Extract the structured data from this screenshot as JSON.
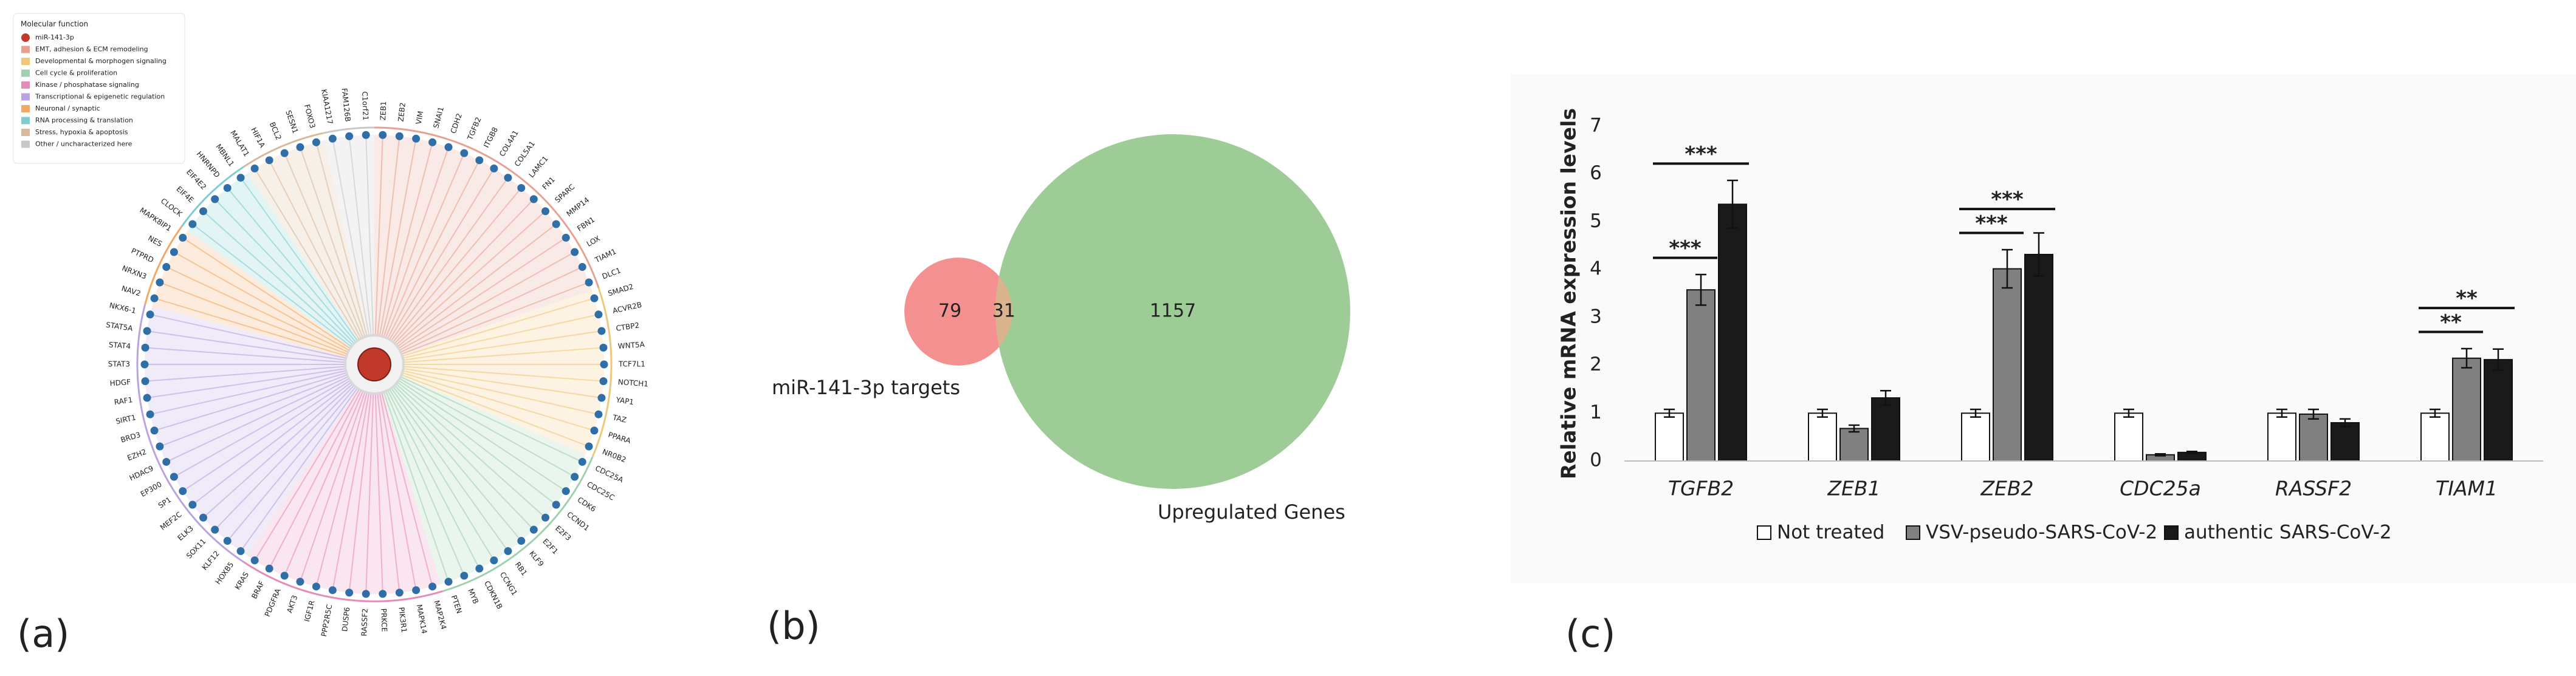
{
  "panels": [
    "(a)",
    "(b)",
    "(c)"
  ],
  "chart_data": [
    {
      "type": "network",
      "legend_title": "Molecular function",
      "center": {
        "name": "miR-141-3p",
        "color": "#c0392b"
      },
      "groups": [
        {
          "name": "EMT, adhesion & ECM remodeling",
          "color": "#e8a090"
        },
        {
          "name": "Developmental & morphogen signaling",
          "color": "#f0c87a"
        },
        {
          "name": "Cell cycle & proliferation",
          "color": "#9fd0b0"
        },
        {
          "name": "Kinase / phosphatase signaling",
          "color": "#e88bb8"
        },
        {
          "name": "Transcriptional & epigenetic regulation",
          "color": "#b9a3e0"
        },
        {
          "name": "Neuronal / synaptic",
          "color": "#f5a862"
        },
        {
          "name": "RNA processing & translation",
          "color": "#7ecbd0"
        },
        {
          "name": "Stress, hypoxia & apoptosis",
          "color": "#d9b99b"
        },
        {
          "name": "Other / uncharacterized here",
          "color": "#c8c8c8"
        }
      ],
      "nodes": [
        {
          "label": "ZEB1",
          "group": 0
        },
        {
          "label": "ZEB2",
          "group": 0
        },
        {
          "label": "VIM",
          "group": 0
        },
        {
          "label": "SNAI1",
          "group": 0
        },
        {
          "label": "CDH2",
          "group": 0
        },
        {
          "label": "TGFB2",
          "group": 0
        },
        {
          "label": "ITGB8",
          "group": 0
        },
        {
          "label": "COL4A1",
          "group": 0
        },
        {
          "label": "COL5A1",
          "group": 0
        },
        {
          "label": "LAMC1",
          "group": 0
        },
        {
          "label": "FN1",
          "group": 0
        },
        {
          "label": "SPARC",
          "group": 0
        },
        {
          "label": "MMP14",
          "group": 0
        },
        {
          "label": "FBN1",
          "group": 0
        },
        {
          "label": "LOX",
          "group": 0
        },
        {
          "label": "TIAM1",
          "group": 0
        },
        {
          "label": "DLC1",
          "group": 0
        },
        {
          "label": "SMAD2",
          "group": 1
        },
        {
          "label": "ACVR2B",
          "group": 1
        },
        {
          "label": "CTBP2",
          "group": 1
        },
        {
          "label": "WNT5A",
          "group": 1
        },
        {
          "label": "TCF7L1",
          "group": 1
        },
        {
          "label": "NOTCH1",
          "group": 1
        },
        {
          "label": "YAP1",
          "group": 1
        },
        {
          "label": "TAZ",
          "group": 1
        },
        {
          "label": "PPARA",
          "group": 1
        },
        {
          "label": "NR0B2",
          "group": 1
        },
        {
          "label": "CDC25A",
          "group": 2
        },
        {
          "label": "CDC25C",
          "group": 2
        },
        {
          "label": "CDK6",
          "group": 2
        },
        {
          "label": "CCND1",
          "group": 2
        },
        {
          "label": "E2F3",
          "group": 2
        },
        {
          "label": "E2F1",
          "group": 2
        },
        {
          "label": "KLF9",
          "group": 2
        },
        {
          "label": "RB1",
          "group": 2
        },
        {
          "label": "CCNG1",
          "group": 2
        },
        {
          "label": "CDKN1B",
          "group": 2
        },
        {
          "label": "MYB",
          "group": 2
        },
        {
          "label": "PTEN",
          "group": 2
        },
        {
          "label": "MAP2K4",
          "group": 3
        },
        {
          "label": "MAPK14",
          "group": 3
        },
        {
          "label": "PIK3R1",
          "group": 3
        },
        {
          "label": "PRKCE",
          "group": 3
        },
        {
          "label": "RASSF2",
          "group": 3
        },
        {
          "label": "DUSP6",
          "group": 3
        },
        {
          "label": "PPP2R5C",
          "group": 3
        },
        {
          "label": "IGF1R",
          "group": 3
        },
        {
          "label": "AKT3",
          "group": 3
        },
        {
          "label": "PDGFRA",
          "group": 3
        },
        {
          "label": "BRAF",
          "group": 3
        },
        {
          "label": "KRAS",
          "group": 3
        },
        {
          "label": "HOXB5",
          "group": 4
        },
        {
          "label": "KLF12",
          "group": 4
        },
        {
          "label": "SOX11",
          "group": 4
        },
        {
          "label": "ELK3",
          "group": 4
        },
        {
          "label": "MEF2C",
          "group": 4
        },
        {
          "label": "SP1",
          "group": 4
        },
        {
          "label": "EP300",
          "group": 4
        },
        {
          "label": "HDAC9",
          "group": 4
        },
        {
          "label": "EZH2",
          "group": 4
        },
        {
          "label": "BRD3",
          "group": 4
        },
        {
          "label": "SIRT1",
          "group": 4
        },
        {
          "label": "RAF1",
          "group": 4
        },
        {
          "label": "HDGF",
          "group": 4
        },
        {
          "label": "STAT3",
          "group": 4
        },
        {
          "label": "STAT4",
          "group": 4
        },
        {
          "label": "STAT5A",
          "group": 4
        },
        {
          "label": "NKX6-1",
          "group": 4
        },
        {
          "label": "NAV2",
          "group": 5
        },
        {
          "label": "NRXN3",
          "group": 5
        },
        {
          "label": "PTPRD",
          "group": 5
        },
        {
          "label": "NES",
          "group": 5
        },
        {
          "label": "MAPK8IP1",
          "group": 5
        },
        {
          "label": "CLOCK",
          "group": 6
        },
        {
          "label": "EIF4E",
          "group": 6
        },
        {
          "label": "EIF4E2",
          "group": 6
        },
        {
          "label": "HNRNPD",
          "group": 6
        },
        {
          "label": "MBNL1",
          "group": 6
        },
        {
          "label": "MALAT1",
          "group": 7
        },
        {
          "label": "HIF1A",
          "group": 7
        },
        {
          "label": "BCL2",
          "group": 7
        },
        {
          "label": "SESN1",
          "group": 7
        },
        {
          "label": "FOXO3",
          "group": 7
        },
        {
          "label": "KIAA1217",
          "group": 8
        },
        {
          "label": "FAM126B",
          "group": 8
        },
        {
          "label": "C1orf21",
          "group": 8
        }
      ]
    },
    {
      "type": "venn",
      "sets": [
        {
          "name": "miR-141-3p targets",
          "color": "#f4908f"
        },
        {
          "name": "Upregulated Genes",
          "color": "#9dcc96"
        }
      ],
      "overlap_color": "#d9b48c",
      "values": [
        79,
        31,
        1157
      ]
    },
    {
      "type": "bar",
      "y_label": "Relative mRNA expression levels",
      "categories": [
        "TGFB2",
        "ZEB1",
        "ZEB2",
        "CDC25a",
        "RASSF2",
        "TIAM1"
      ],
      "series": [
        {
          "name": "Not treated",
          "color": "#ffffff",
          "values": [
            1.0,
            1.0,
            1.0,
            1.0,
            1.0,
            1.0
          ],
          "errors": [
            0.08,
            0.08,
            0.08,
            0.08,
            0.08,
            0.08
          ]
        },
        {
          "name": "VSV-pseudo-SARS-CoV-2",
          "color": "#808080",
          "values": [
            3.58,
            0.68,
            4.02,
            0.13,
            0.98,
            2.15
          ],
          "errors": [
            0.32,
            0.07,
            0.4,
            0.02,
            0.1,
            0.2
          ]
        },
        {
          "name": "authentic SARS-CoV-2",
          "color": "#1a1a1a",
          "values": [
            5.37,
            1.32,
            4.32,
            0.18,
            0.8,
            2.12
          ],
          "errors": [
            0.5,
            0.15,
            0.45,
            0.02,
            0.08,
            0.22
          ]
        }
      ],
      "annotations": [
        {
          "label": "***",
          "category": 0,
          "from": 0,
          "to": 1
        },
        {
          "label": "***",
          "category": 0,
          "from": 0,
          "to": 2
        },
        {
          "label": "***",
          "category": 2,
          "from": 0,
          "to": 1
        },
        {
          "label": "***",
          "category": 2,
          "from": 0,
          "to": 2
        },
        {
          "label": "**",
          "category": 5,
          "from": 0,
          "to": 1
        },
        {
          "label": "**",
          "category": 5,
          "from": 0,
          "to": 2
        }
      ],
      "ylim": [
        0,
        7
      ],
      "yticks": [
        0,
        1,
        2,
        3,
        4,
        5,
        6,
        7
      ],
      "grid": false
    }
  ]
}
